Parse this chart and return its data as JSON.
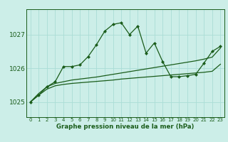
{
  "title": "Graphe pression niveau de la mer (hPa)",
  "bg_color": "#cceee8",
  "line_color": "#1a5c1a",
  "grid_color": "#aaddd6",
  "xlim": [
    -0.5,
    23.5
  ],
  "ylim": [
    1024.55,
    1027.75
  ],
  "yticks": [
    1025,
    1026,
    1027
  ],
  "xticks": [
    0,
    1,
    2,
    3,
    4,
    5,
    6,
    7,
    8,
    9,
    10,
    11,
    12,
    13,
    14,
    15,
    16,
    17,
    18,
    19,
    20,
    21,
    22,
    23
  ],
  "hours": [
    0,
    1,
    2,
    3,
    4,
    5,
    6,
    7,
    8,
    9,
    10,
    11,
    12,
    13,
    14,
    15,
    16,
    17,
    18,
    19,
    20,
    21,
    22,
    23
  ],
  "line1": [
    1025.0,
    1025.2,
    1025.45,
    1025.6,
    1026.05,
    1026.05,
    1026.1,
    1026.35,
    1026.7,
    1027.1,
    1027.3,
    1027.35,
    1027.0,
    1027.25,
    1026.45,
    1026.75,
    1026.2,
    1025.75,
    1025.75,
    1025.78,
    1025.82,
    1026.15,
    1026.5,
    1026.65
  ],
  "line2": [
    1025.0,
    1025.25,
    1025.45,
    1025.55,
    1025.6,
    1025.65,
    1025.68,
    1025.71,
    1025.74,
    1025.78,
    1025.82,
    1025.86,
    1025.9,
    1025.94,
    1025.98,
    1026.02,
    1026.06,
    1026.1,
    1026.14,
    1026.18,
    1026.22,
    1026.27,
    1026.33,
    1026.6
  ],
  "line3": [
    1025.0,
    1025.2,
    1025.38,
    1025.48,
    1025.52,
    1025.55,
    1025.57,
    1025.59,
    1025.61,
    1025.63,
    1025.65,
    1025.68,
    1025.7,
    1025.72,
    1025.74,
    1025.76,
    1025.78,
    1025.8,
    1025.82,
    1025.84,
    1025.86,
    1025.88,
    1025.91,
    1026.12
  ]
}
